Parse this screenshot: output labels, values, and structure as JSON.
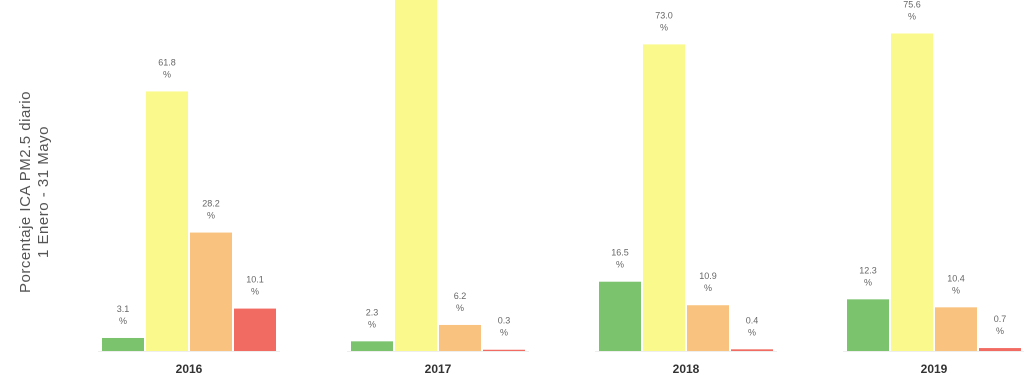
{
  "chart_data": {
    "type": "bar",
    "ylabel_line1": "Porcentaje ICA PM2.5 diario",
    "ylabel_line2": "1 Enero - 31 Mayo",
    "categories": [
      "2016",
      "2017",
      "2018",
      "2019"
    ],
    "series": [
      {
        "color": "#7cc36e",
        "values": [
          3.1,
          2.3,
          16.5,
          12.3
        ]
      },
      {
        "color": "#fafa8c",
        "values": [
          61.8,
          90.0,
          73.0,
          75.6
        ]
      },
      {
        "color": "#f9c27f",
        "values": [
          28.2,
          6.2,
          10.9,
          10.4
        ]
      },
      {
        "color": "#f26b63",
        "values": [
          10.1,
          0.3,
          0.4,
          0.7
        ]
      }
    ],
    "value_labels": [
      [
        "3.1\n%",
        "61.8\n%",
        "28.2\n%",
        "10.1\n%"
      ],
      [
        "2.3\n%",
        "",
        "6.2\n%",
        "0.3\n%"
      ],
      [
        "16.5\n%",
        "73.0\n%",
        "10.9\n%",
        "0.4\n%"
      ],
      [
        "12.3\n%",
        "75.6\n%",
        "10.4\n%",
        "0.7\n%"
      ]
    ]
  }
}
